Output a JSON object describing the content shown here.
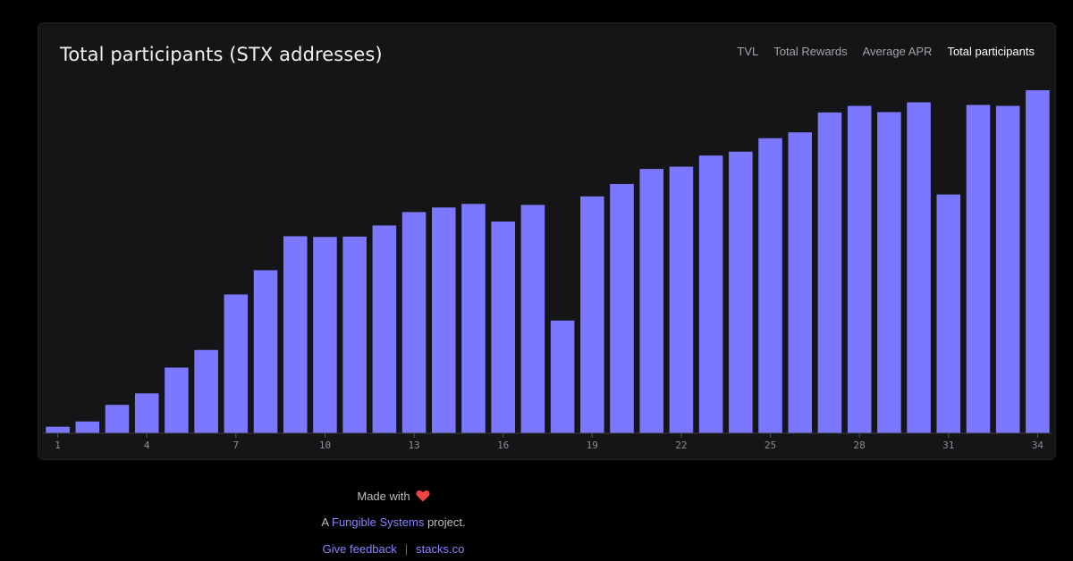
{
  "chart_data": {
    "type": "bar",
    "title": "Total participants (STX addresses)",
    "categories": [
      1,
      2,
      3,
      4,
      5,
      6,
      7,
      8,
      9,
      10,
      11,
      12,
      13,
      14,
      15,
      16,
      17,
      18,
      19,
      20,
      21,
      22,
      23,
      24,
      25,
      26,
      27,
      28,
      29,
      30,
      31,
      32,
      33,
      34
    ],
    "values": [
      20,
      36,
      87,
      122,
      201,
      255,
      425,
      499,
      603,
      601,
      602,
      636,
      677,
      691,
      702,
      648,
      699,
      345,
      725,
      763,
      809,
      816,
      850,
      862,
      903,
      921,
      982,
      1002,
      983,
      1013,
      731,
      1005,
      1002,
      1050
    ],
    "xticks": [
      1,
      4,
      7,
      10,
      13,
      16,
      19,
      22,
      25,
      28,
      31,
      34
    ],
    "ylim": [
      0,
      1050
    ],
    "xlabel": "",
    "ylabel": "",
    "grid": false,
    "bar_color": "#7b78ff"
  },
  "tabs": [
    {
      "label": "TVL",
      "active": false
    },
    {
      "label": "Total Rewards",
      "active": false
    },
    {
      "label": "Average APR",
      "active": false
    },
    {
      "label": "Total participants",
      "active": true
    }
  ],
  "footer": {
    "made_with": "Made with",
    "heart_icon": "heart-icon",
    "heart_color": "#ef4444",
    "project_prefix": "A",
    "project_link": "Fungible Systems",
    "project_suffix": "project.",
    "feedback_link": "Give feedback",
    "separator": "|",
    "site_link": "stacks.co"
  },
  "colors": {
    "background": "#000000",
    "card": "#151517",
    "accent": "#7b78ff"
  }
}
